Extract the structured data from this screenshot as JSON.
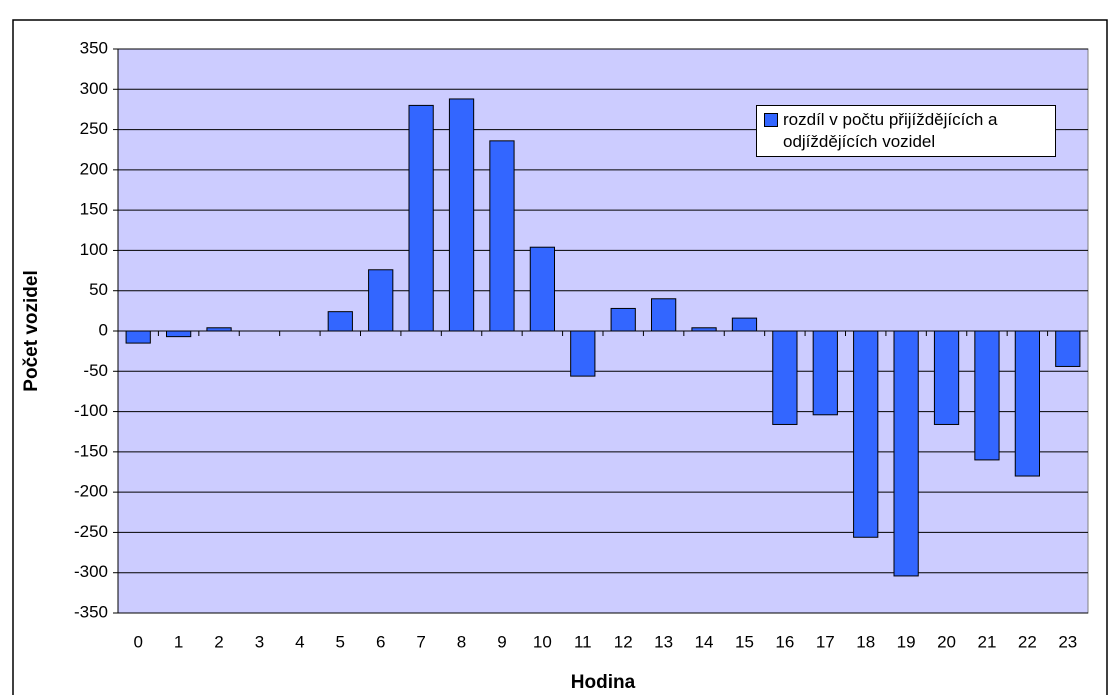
{
  "chart_data": {
    "type": "bar",
    "x_label": "Hodina",
    "y_label": "Počet vozidel",
    "categories": [
      "0",
      "1",
      "2",
      "3",
      "4",
      "5",
      "6",
      "7",
      "8",
      "9",
      "10",
      "11",
      "12",
      "13",
      "14",
      "15",
      "16",
      "17",
      "18",
      "19",
      "20",
      "21",
      "22",
      "23"
    ],
    "series": [
      {
        "name": "rozdíl v počtu přijíždějících a odjíždějících vozidel",
        "color": "#3366ff",
        "values": [
          -15,
          -7,
          4,
          0,
          0,
          24,
          76,
          280,
          288,
          236,
          104,
          -56,
          28,
          40,
          4,
          16,
          -116,
          -104,
          -256,
          -304,
          -116,
          -160,
          -180,
          -44
        ]
      }
    ],
    "ylim": [
      -350,
      350
    ],
    "yticks": [
      -350,
      -300,
      -250,
      -200,
      -150,
      -100,
      -50,
      0,
      50,
      100,
      150,
      200,
      250,
      300,
      350
    ],
    "grid": true,
    "legend": "top-right"
  }
}
